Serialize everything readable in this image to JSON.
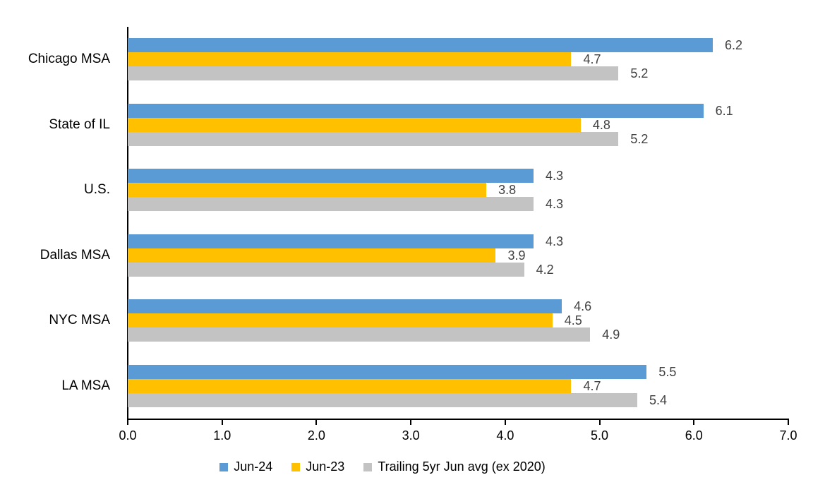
{
  "chart_data": {
    "type": "bar",
    "orientation": "horizontal",
    "title": "",
    "categories": [
      "Chicago MSA",
      "State of IL",
      "U.S.",
      "Dallas MSA",
      "NYC MSA",
      "LA MSA"
    ],
    "series": [
      {
        "name": "Jun-24",
        "color": "#5B9BD5",
        "values": [
          6.2,
          6.1,
          4.3,
          4.3,
          4.6,
          5.5
        ]
      },
      {
        "name": "Jun-23",
        "color": "#FFC000",
        "values": [
          4.7,
          4.8,
          3.8,
          3.9,
          4.5,
          4.7
        ]
      },
      {
        "name": "Trailing 5yr Jun avg (ex 2020)",
        "color": "#C3C3C3",
        "values": [
          5.2,
          5.2,
          4.3,
          4.2,
          4.9,
          5.4
        ]
      }
    ],
    "xlim": [
      0,
      7
    ],
    "x_ticks": [
      "0.0",
      "1.0",
      "2.0",
      "3.0",
      "4.0",
      "5.0",
      "6.0",
      "7.0"
    ],
    "data_labels": true,
    "legend_position": "bottom",
    "grid": false
  },
  "colors": {
    "background": "#FFFFFF",
    "axis": "#000000",
    "data_label": "#404040",
    "text": "#000000"
  }
}
